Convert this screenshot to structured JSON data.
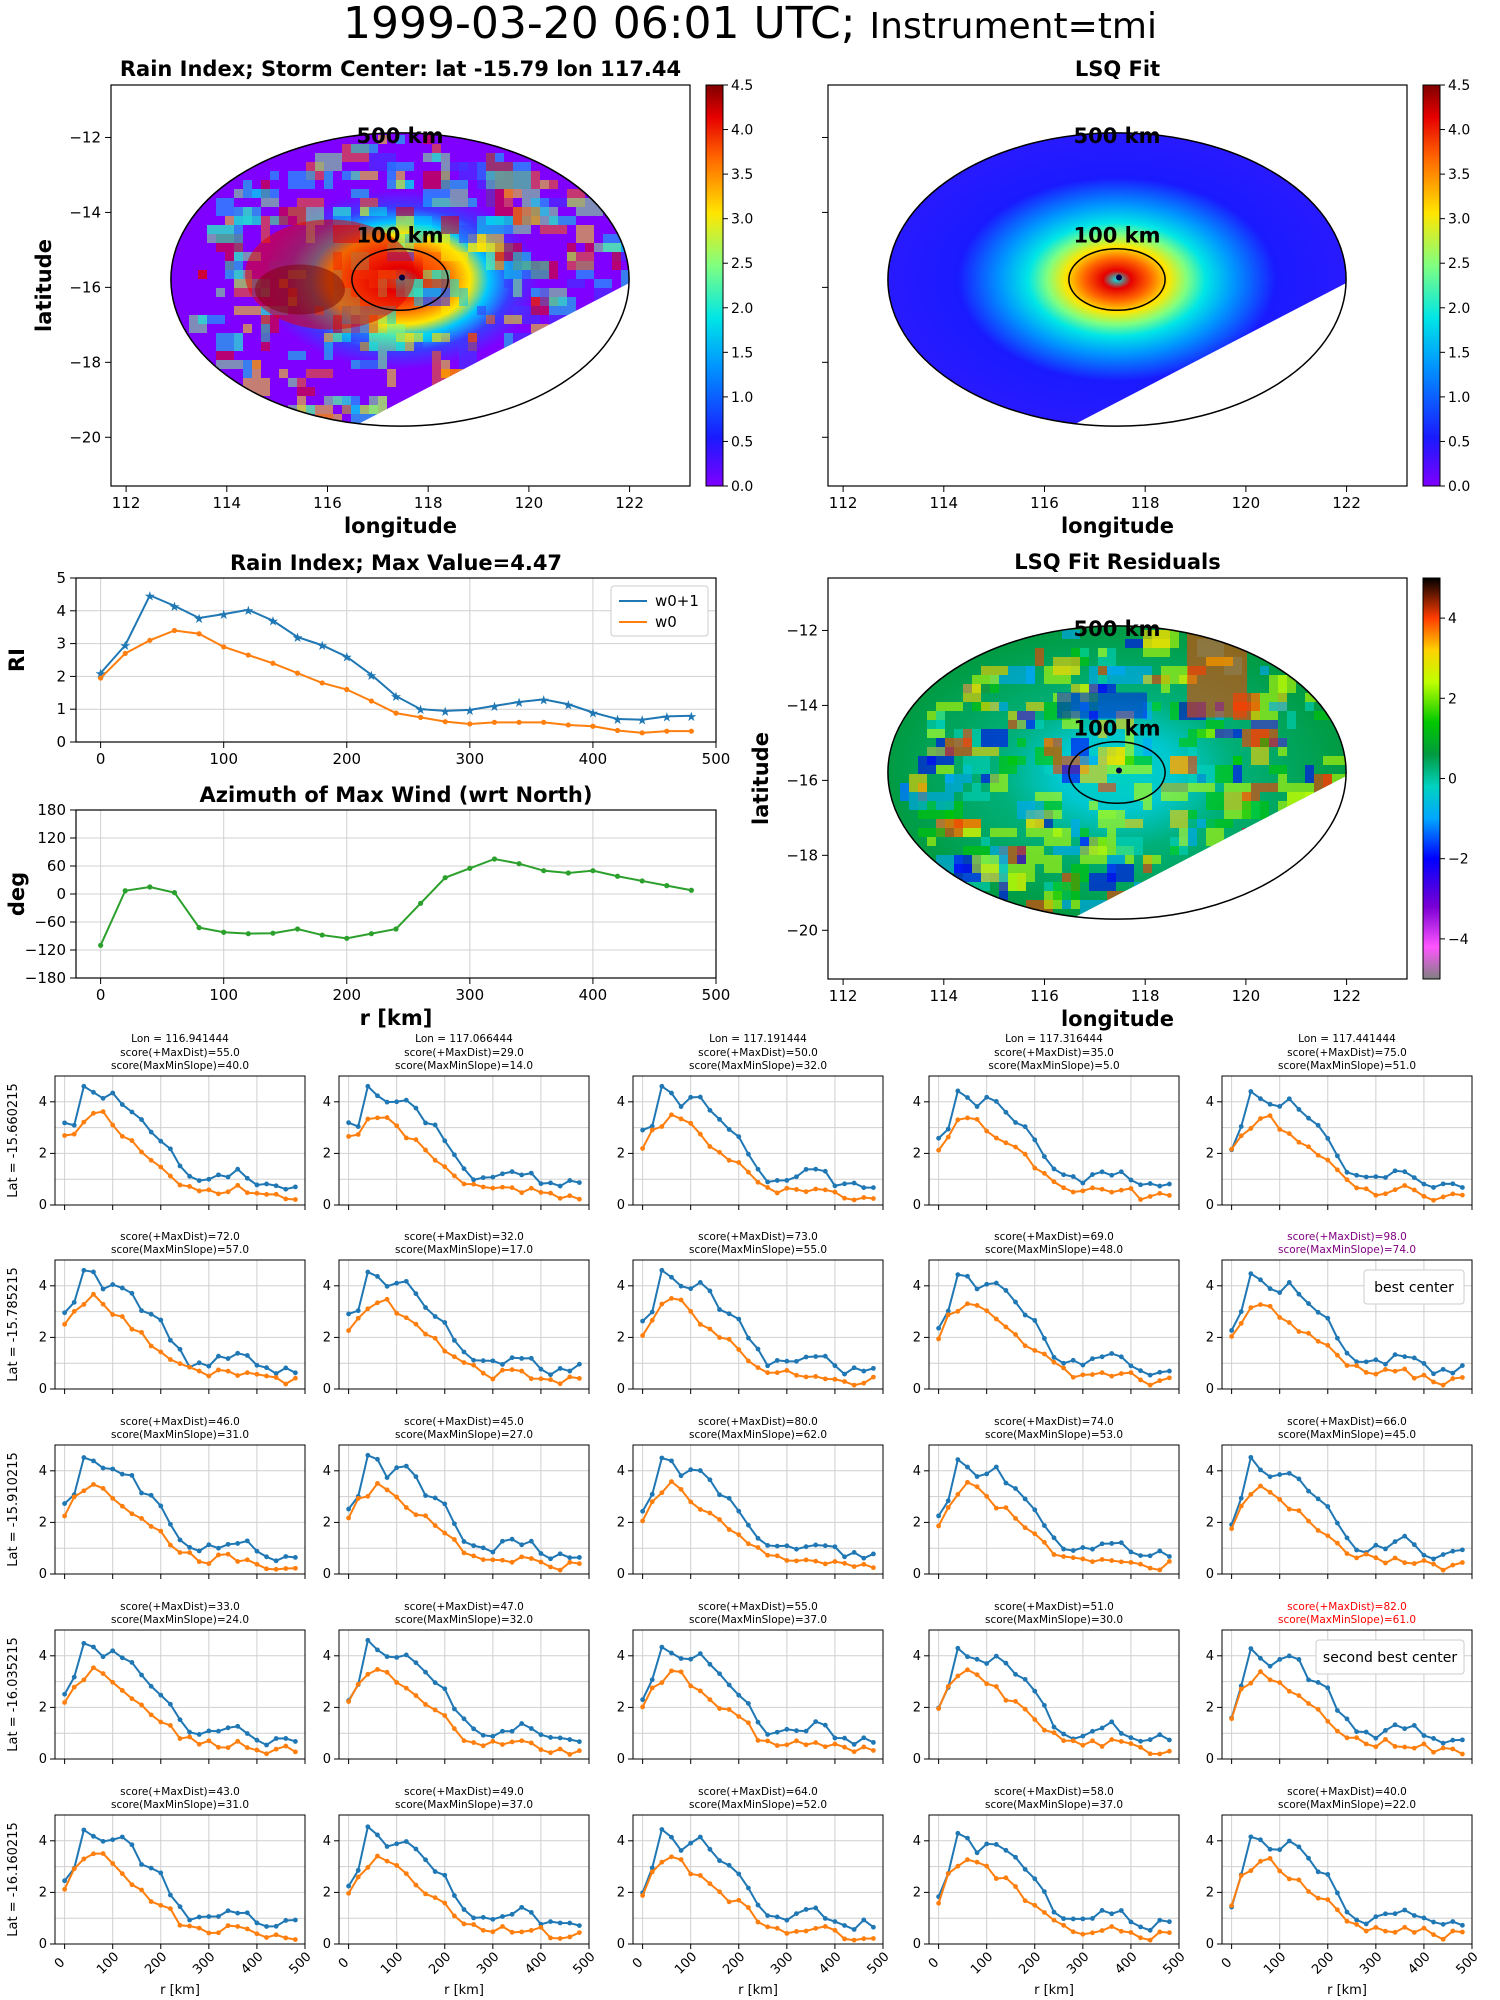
{
  "suptitle": {
    "main": "1999-03-20 06:01 UTC;",
    "small": "Instrument=tmi"
  },
  "colors": {
    "w0p1": "#1f77b4",
    "w0": "#ff7f0e",
    "azimuth": "#2ca02c",
    "best": "#800080",
    "second": "#ff0000",
    "grid": "#d0d0d0"
  },
  "chart_data": [
    {
      "id": "rain-index-map",
      "type": "heatmap",
      "title": "Rain Index; Storm Center: lat -15.79 lon 117.44",
      "xlabel": "longitude",
      "ylabel": "latitude",
      "xlim": [
        111.7,
        123.2
      ],
      "ylim": [
        -21.3,
        -10.6
      ],
      "xticks": [
        112,
        114,
        116,
        118,
        120,
        122
      ],
      "yticks": [
        -12,
        -14,
        -16,
        -18,
        -20
      ],
      "center": [
        117.44,
        -15.79
      ],
      "rings": [
        {
          "label": "500 km",
          "radius_deg": 4.55
        },
        {
          "label": "100 km",
          "radius_deg": 0.95
        }
      ],
      "colorbar": {
        "min": 0.0,
        "max": 4.5,
        "ticks": [
          0.0,
          0.5,
          1.0,
          1.5,
          2.0,
          2.5,
          3.0,
          3.5,
          4.0,
          4.5
        ],
        "colormap": "jet"
      }
    },
    {
      "id": "lsq-fit-map",
      "type": "heatmap",
      "title": "LSQ Fit",
      "xlabel": "longitude",
      "ylabel": "",
      "xlim": [
        111.7,
        123.2
      ],
      "ylim": [
        -21.3,
        -10.6
      ],
      "xticks": [
        112,
        114,
        116,
        118,
        120,
        122
      ],
      "yticks": [],
      "center": [
        117.44,
        -15.79
      ],
      "rings": [
        {
          "label": "500 km",
          "radius_deg": 4.55
        },
        {
          "label": "100 km",
          "radius_deg": 0.95
        }
      ],
      "colorbar": {
        "min": 0.0,
        "max": 4.5,
        "ticks": [
          0.0,
          0.5,
          1.0,
          1.5,
          2.0,
          2.5,
          3.0,
          3.5,
          4.0,
          4.5
        ],
        "colormap": "jet"
      }
    },
    {
      "id": "rain-index-profile",
      "type": "line",
      "title": "Rain Index; Max Value=4.47",
      "xlabel": "",
      "ylabel": "RI",
      "xlim": [
        -20,
        500
      ],
      "ylim": [
        0,
        5
      ],
      "xticks": [
        0,
        100,
        200,
        300,
        400,
        500
      ],
      "yticks": [
        0,
        1,
        2,
        3,
        4,
        5
      ],
      "legend": "top-right",
      "grid": true,
      "x": [
        0,
        20,
        40,
        60,
        80,
        100,
        120,
        140,
        160,
        180,
        200,
        220,
        240,
        260,
        280,
        300,
        320,
        340,
        360,
        380,
        400,
        420,
        440,
        460,
        480
      ],
      "series": [
        {
          "name": "w0+1",
          "marker": "star",
          "values": [
            2.1,
            2.95,
            4.47,
            4.15,
            3.78,
            3.9,
            4.03,
            3.7,
            3.2,
            2.95,
            2.6,
            2.05,
            1.4,
            1.0,
            0.95,
            0.98,
            1.1,
            1.22,
            1.3,
            1.15,
            0.9,
            0.7,
            0.68,
            0.78,
            0.8
          ]
        },
        {
          "name": "w0",
          "marker": "dot",
          "values": [
            1.95,
            2.7,
            3.1,
            3.4,
            3.3,
            2.9,
            2.65,
            2.4,
            2.1,
            1.8,
            1.6,
            1.25,
            0.88,
            0.75,
            0.62,
            0.55,
            0.6,
            0.6,
            0.6,
            0.52,
            0.48,
            0.35,
            0.28,
            0.33,
            0.33
          ]
        }
      ]
    },
    {
      "id": "azimuth-max-wind",
      "type": "line",
      "title": "Azimuth of Max Wind (wrt North)",
      "xlabel": "r [km]",
      "ylabel": "deg",
      "xlim": [
        -20,
        500
      ],
      "ylim": [
        -180,
        180
      ],
      "xticks": [
        0,
        100,
        200,
        300,
        400,
        500
      ],
      "yticks": [
        180,
        120,
        60,
        0,
        -60,
        -120,
        -180
      ],
      "grid": true,
      "x": [
        0,
        20,
        40,
        60,
        80,
        100,
        120,
        140,
        160,
        180,
        200,
        220,
        240,
        260,
        280,
        300,
        320,
        340,
        360,
        380,
        400,
        420,
        440,
        460,
        480
      ],
      "series": [
        {
          "name": "",
          "marker": "dot",
          "values": [
            -110,
            7,
            15,
            3,
            -72,
            -82,
            -85,
            -84,
            -75,
            -88,
            -95,
            -85,
            -75,
            -20,
            35,
            55,
            75,
            65,
            50,
            45,
            50,
            38,
            28,
            18,
            8
          ]
        }
      ]
    },
    {
      "id": "lsq-fit-residuals",
      "type": "heatmap",
      "title": "LSQ Fit Residuals",
      "xlabel": "longitude",
      "ylabel": "latitude",
      "xlim": [
        111.7,
        123.2
      ],
      "ylim": [
        -21.3,
        -10.6
      ],
      "xticks": [
        112,
        114,
        116,
        118,
        120,
        122
      ],
      "yticks": [
        -12,
        -14,
        -16,
        -18,
        -20
      ],
      "center": [
        117.44,
        -15.79
      ],
      "rings": [
        {
          "label": "500 km",
          "radius_deg": 4.55
        },
        {
          "label": "100 km",
          "radius_deg": 0.95
        }
      ],
      "colorbar": {
        "min": -5,
        "max": 5,
        "ticks": [
          4,
          2,
          0,
          -2,
          -4
        ],
        "colormap": "nipy_spectral"
      }
    }
  ],
  "grid": {
    "lons": [
      "Lon = 116.941444",
      "Lon = 117.066444",
      "Lon = 117.191444",
      "Lon = 117.316444",
      "Lon = 117.441444"
    ],
    "lats": [
      "Lat = -15.660215",
      "Lat = -15.785215",
      "Lat = -15.910215",
      "Lat = -16.035215",
      "Lat = -16.160215"
    ],
    "xlabel": "r [km]",
    "xticks": [
      0,
      100,
      200,
      300,
      400,
      500
    ],
    "yticks": [
      0,
      2,
      4
    ],
    "ylim": [
      0,
      5
    ],
    "xlim": [
      -20,
      500
    ],
    "best_label": "best center",
    "second_label": "second best center",
    "cells": [
      [
        {
          "s1": "score(+MaxDist)=55.0",
          "s2": "score(MaxMinSlope)=40.0"
        },
        {
          "s1": "score(+MaxDist)=29.0",
          "s2": "score(MaxMinSlope)=14.0"
        },
        {
          "s1": "score(+MaxDist)=50.0",
          "s2": "score(MaxMinSlope)=32.0"
        },
        {
          "s1": "score(+MaxDist)=35.0",
          "s2": "score(MaxMinSlope)=5.0"
        },
        {
          "s1": "score(+MaxDist)=75.0",
          "s2": "score(MaxMinSlope)=51.0"
        }
      ],
      [
        {
          "s1": "score(+MaxDist)=72.0",
          "s2": "score(MaxMinSlope)=57.0"
        },
        {
          "s1": "score(+MaxDist)=32.0",
          "s2": "score(MaxMinSlope)=17.0"
        },
        {
          "s1": "score(+MaxDist)=73.0",
          "s2": "score(MaxMinSlope)=55.0"
        },
        {
          "s1": "score(+MaxDist)=69.0",
          "s2": "score(MaxMinSlope)=48.0"
        },
        {
          "s1": "score(+MaxDist)=98.0",
          "s2": "score(MaxMinSlope)=74.0",
          "mark": "best"
        }
      ],
      [
        {
          "s1": "score(+MaxDist)=46.0",
          "s2": "score(MaxMinSlope)=31.0"
        },
        {
          "s1": "score(+MaxDist)=45.0",
          "s2": "score(MaxMinSlope)=27.0"
        },
        {
          "s1": "score(+MaxDist)=80.0",
          "s2": "score(MaxMinSlope)=62.0"
        },
        {
          "s1": "score(+MaxDist)=74.0",
          "s2": "score(MaxMinSlope)=53.0"
        },
        {
          "s1": "score(+MaxDist)=66.0",
          "s2": "score(MaxMinSlope)=45.0"
        }
      ],
      [
        {
          "s1": "score(+MaxDist)=33.0",
          "s2": "score(MaxMinSlope)=24.0"
        },
        {
          "s1": "score(+MaxDist)=47.0",
          "s2": "score(MaxMinSlope)=32.0"
        },
        {
          "s1": "score(+MaxDist)=55.0",
          "s2": "score(MaxMinSlope)=37.0"
        },
        {
          "s1": "score(+MaxDist)=51.0",
          "s2": "score(MaxMinSlope)=30.0"
        },
        {
          "s1": "score(+MaxDist)=82.0",
          "s2": "score(MaxMinSlope)=61.0",
          "mark": "second"
        }
      ],
      [
        {
          "s1": "score(+MaxDist)=43.0",
          "s2": "score(MaxMinSlope)=31.0"
        },
        {
          "s1": "score(+MaxDist)=49.0",
          "s2": "score(MaxMinSlope)=37.0"
        },
        {
          "s1": "score(+MaxDist)=64.0",
          "s2": "score(MaxMinSlope)=52.0"
        },
        {
          "s1": "score(+MaxDist)=58.0",
          "s2": "score(MaxMinSlope)=37.0"
        },
        {
          "s1": "score(+MaxDist)=40.0",
          "s2": "score(MaxMinSlope)=22.0"
        }
      ]
    ]
  }
}
